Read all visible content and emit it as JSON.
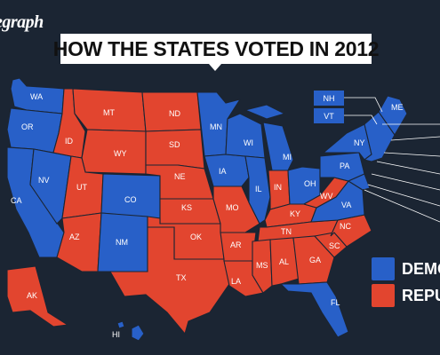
{
  "brand": "egraph",
  "title": "HOW THE STATES VOTED IN 2012",
  "colors": {
    "democrat": "#2860c8",
    "republican": "#e2452f",
    "background": "#1b2533"
  },
  "legend": [
    {
      "label": "DEMO",
      "party": "democrat"
    },
    {
      "label": "REPU",
      "party": "republican"
    }
  ],
  "states": {
    "WA": {
      "label": "WA",
      "party": "democrat"
    },
    "OR": {
      "label": "OR",
      "party": "democrat"
    },
    "CA": {
      "label": "CA",
      "party": "democrat"
    },
    "NV": {
      "label": "NV",
      "party": "democrat"
    },
    "ID": {
      "label": "ID",
      "party": "republican"
    },
    "MT": {
      "label": "MT",
      "party": "republican"
    },
    "WY": {
      "label": "WY",
      "party": "republican"
    },
    "UT": {
      "label": "UT",
      "party": "republican"
    },
    "AZ": {
      "label": "AZ",
      "party": "republican"
    },
    "CO": {
      "label": "CO",
      "party": "democrat"
    },
    "NM": {
      "label": "NM",
      "party": "democrat"
    },
    "ND": {
      "label": "ND",
      "party": "republican"
    },
    "SD": {
      "label": "SD",
      "party": "republican"
    },
    "NE": {
      "label": "NE",
      "party": "republican"
    },
    "KS": {
      "label": "KS",
      "party": "republican"
    },
    "OK": {
      "label": "OK",
      "party": "republican"
    },
    "TX": {
      "label": "TX",
      "party": "republican"
    },
    "MN": {
      "label": "MN",
      "party": "democrat"
    },
    "IA": {
      "label": "IA",
      "party": "democrat"
    },
    "MO": {
      "label": "MO",
      "party": "republican"
    },
    "AR": {
      "label": "AR",
      "party": "republican"
    },
    "LA": {
      "label": "LA",
      "party": "republican"
    },
    "WI": {
      "label": "WI",
      "party": "democrat"
    },
    "IL": {
      "label": "IL",
      "party": "democrat"
    },
    "MI": {
      "label": "MI",
      "party": "democrat"
    },
    "IN": {
      "label": "IN",
      "party": "republican"
    },
    "OH": {
      "label": "OH",
      "party": "democrat"
    },
    "KY": {
      "label": "KY",
      "party": "republican"
    },
    "TN": {
      "label": "TN",
      "party": "republican"
    },
    "MS": {
      "label": "MS",
      "party": "republican"
    },
    "AL": {
      "label": "AL",
      "party": "republican"
    },
    "GA": {
      "label": "GA",
      "party": "republican"
    },
    "FL": {
      "label": "FL",
      "party": "democrat"
    },
    "SC": {
      "label": "SC",
      "party": "republican"
    },
    "NC": {
      "label": "NC",
      "party": "republican"
    },
    "VA": {
      "label": "VA",
      "party": "democrat"
    },
    "WV": {
      "label": "WV",
      "party": "republican"
    },
    "PA": {
      "label": "PA",
      "party": "democrat"
    },
    "NY": {
      "label": "NY",
      "party": "democrat"
    },
    "ME": {
      "label": "ME",
      "party": "democrat"
    },
    "AK": {
      "label": "AK",
      "party": "republican"
    },
    "HI": {
      "label": "HI",
      "party": "democrat"
    },
    "NE_REGION": {
      "label": "",
      "party": "democrat"
    }
  },
  "callouts": [
    {
      "label": "NH",
      "party": "democrat"
    },
    {
      "label": "VT",
      "party": "democrat"
    }
  ]
}
